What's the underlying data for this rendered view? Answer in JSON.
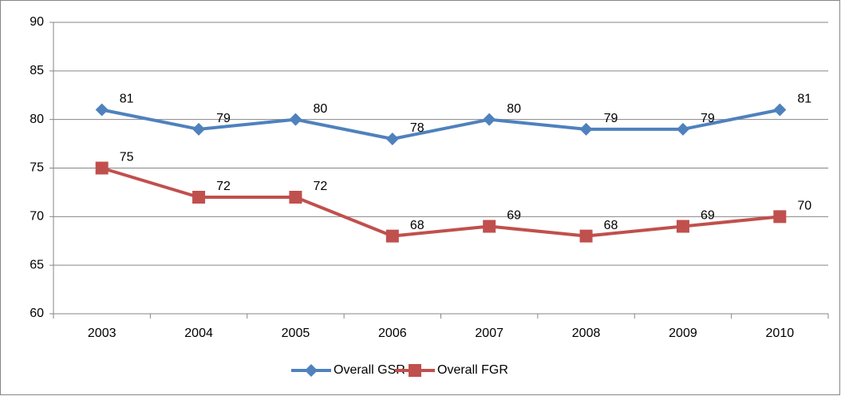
{
  "chart_data": {
    "type": "line",
    "categories": [
      "2003",
      "2004",
      "2005",
      "2006",
      "2007",
      "2008",
      "2009",
      "2010"
    ],
    "series": [
      {
        "name": "Overall GSR",
        "color": "#4f81bd",
        "marker": "diamond",
        "values": [
          81,
          79,
          80,
          78,
          80,
          79,
          79,
          81
        ]
      },
      {
        "name": "Overall FGR",
        "color": "#c0504d",
        "marker": "square",
        "values": [
          75,
          72,
          72,
          68,
          69,
          68,
          69,
          70
        ]
      }
    ],
    "ylim": [
      60,
      90
    ],
    "yticks": [
      60,
      65,
      70,
      75,
      80,
      85,
      90
    ],
    "grid": true,
    "legend": "bottom"
  }
}
